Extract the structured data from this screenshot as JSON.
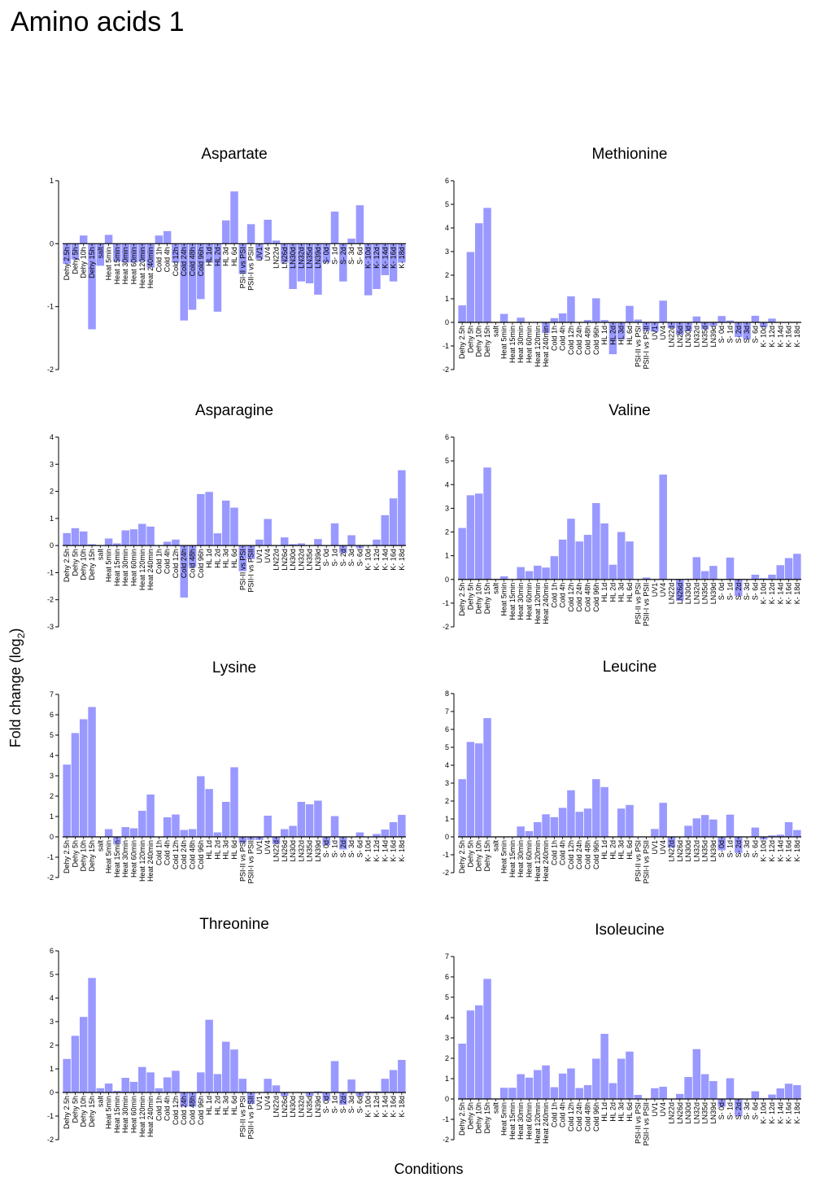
{
  "page": {
    "title": "Amino acids 1",
    "ylabel": "Fold change (log",
    "ylabel_sub": "2",
    "ylabel_end": ")",
    "xlabel": "Conditions"
  },
  "style": {
    "bar_color": "#9999ff"
  },
  "categories": [
    "Dehy 2.5h",
    "Dehy 5h",
    "Dehy 10h",
    "Dehy 15h",
    "salt",
    "Heat 5min",
    "Heat 15min",
    "Heat 30min",
    "Heat 60min",
    "Heat 120min",
    "Heat 240min",
    "Cold 1h",
    "Cold 4h",
    "Cold 12h",
    "Cold 24h",
    "Cold 48h",
    "Cold 96h",
    "HL 1d",
    "HL 2d",
    "HL 3d",
    "HL 6d",
    "PSI-II vs PSI",
    "PSII-I vs PSII",
    "UV1",
    "UV4",
    "LN22d",
    "LN26d",
    "LN30d",
    "LN32d",
    "LN35d",
    "LN39d",
    "S- 0d",
    "S- 1d",
    "S- 2d",
    "S- 3d",
    "S- 6d",
    "K- 10d",
    "K- 12d",
    "K- 14d",
    "K- 16d",
    "K- 18d"
  ],
  "chart_data": [
    {
      "type": "bar",
      "title": "Aspartate",
      "ylim": [
        -2,
        1
      ],
      "yticks": [
        "-2",
        "-1",
        "0",
        "1"
      ],
      "values": [
        -0.32,
        -0.25,
        0.13,
        -1.36,
        -0.35,
        0.14,
        -0.28,
        -0.3,
        -0.3,
        -0.28,
        -0.38,
        0.13,
        0.2,
        -0.3,
        -1.22,
        -1.05,
        -0.88,
        -0.3,
        -1.08,
        0.37,
        0.83,
        -0.48,
        0.31,
        -0.25,
        0.38,
        0.05,
        -0.3,
        -0.72,
        -0.6,
        -0.63,
        -0.81,
        -0.3,
        0.51,
        -0.6,
        0.08,
        0.61,
        -0.82,
        -0.72,
        -0.5,
        -0.6,
        -0.3
      ]
    },
    {
      "type": "bar",
      "title": "Methionine",
      "ylim": [
        -2,
        6
      ],
      "yticks": [
        "-2",
        "-1",
        "0",
        "1",
        "2",
        "3",
        "4",
        "5",
        "6"
      ],
      "values": [
        0.72,
        2.98,
        4.2,
        4.85,
        0,
        0.36,
        0,
        0.2,
        0,
        0,
        -0.45,
        0.18,
        0.38,
        1.1,
        0,
        0.1,
        1.02,
        0.1,
        -1.35,
        -0.72,
        0.7,
        0.12,
        -0.35,
        -0.4,
        0.92,
        -0.25,
        -0.52,
        -0.38,
        0.25,
        -0.3,
        -0.15,
        0.27,
        0.08,
        -0.62,
        -0.72,
        0.28,
        -0.2,
        0.16,
        0,
        0,
        0
      ]
    },
    {
      "type": "bar",
      "title": "Asparagine",
      "ylim": [
        -3,
        4
      ],
      "yticks": [
        "-3",
        "-2",
        "-1",
        "0",
        "1",
        "2",
        "3",
        "4"
      ],
      "values": [
        0.46,
        0.64,
        0.52,
        0.05,
        0,
        0.26,
        0.08,
        0.56,
        0.6,
        0.8,
        0.7,
        0,
        0.14,
        0.22,
        -1.92,
        -0.8,
        1.9,
        1.98,
        0.45,
        1.66,
        1.4,
        -0.95,
        -0.5,
        0.22,
        0.98,
        0,
        0.3,
        0.05,
        0.08,
        0,
        0.24,
        0,
        0.82,
        -0.28,
        0.38,
        -0.1,
        0,
        0.22,
        1.12,
        1.74,
        2.78
      ]
    },
    {
      "type": "bar",
      "title": "Valine",
      "ylim": [
        -2,
        6
      ],
      "yticks": [
        "-2",
        "-1",
        "0",
        "1",
        "2",
        "3",
        "4",
        "5",
        "6"
      ],
      "values": [
        2.17,
        3.55,
        3.62,
        4.72,
        0,
        0.13,
        0,
        0.52,
        0.35,
        0.58,
        0.5,
        0.98,
        1.68,
        2.56,
        1.6,
        1.88,
        3.22,
        2.36,
        0.62,
        2.0,
        1.6,
        0,
        0.08,
        0,
        4.42,
        0,
        -0.9,
        0.03,
        0.94,
        0.35,
        0.57,
        0.02,
        0.92,
        -0.7,
        0,
        0.2,
        0.05,
        0.2,
        0.6,
        0.9,
        1.08
      ]
    },
    {
      "type": "bar",
      "title": "Lysine",
      "ylim": [
        -2,
        7
      ],
      "yticks": [
        "-2",
        "-1",
        "0",
        "1",
        "2",
        "3",
        "4",
        "5",
        "6",
        "7"
      ],
      "values": [
        3.55,
        5.1,
        5.78,
        6.38,
        0,
        0.38,
        -0.35,
        0.48,
        0.42,
        1.28,
        2.08,
        0.02,
        0.96,
        1.1,
        0.34,
        0.38,
        2.98,
        2.35,
        0.22,
        1.72,
        3.42,
        -0.3,
        -0.15,
        -0.15,
        1.04,
        -0.35,
        0.38,
        0.54,
        1.72,
        1.6,
        1.78,
        -0.42,
        1.02,
        -0.62,
        0.02,
        0.22,
        0,
        0.14,
        0.36,
        0.72,
        1.08
      ]
    },
    {
      "type": "bar",
      "title": "Leucine",
      "ylim": [
        -2,
        8
      ],
      "yticks": [
        "-2",
        "-1",
        "0",
        "1",
        "2",
        "3",
        "4",
        "5",
        "6",
        "7",
        "8"
      ],
      "values": [
        3.22,
        5.3,
        5.22,
        6.63,
        0,
        0,
        0,
        0.58,
        0.32,
        0.82,
        1.26,
        1.1,
        1.62,
        2.6,
        1.4,
        1.58,
        3.22,
        2.78,
        0,
        1.58,
        1.78,
        0,
        0,
        0.44,
        1.9,
        -0.6,
        0,
        0.62,
        1.03,
        1.22,
        0.97,
        -0.75,
        1.24,
        -0.9,
        0,
        0.52,
        -0.15,
        0.08,
        0.12,
        0.82,
        0.38
      ]
    },
    {
      "type": "bar",
      "title": "Threonine",
      "ylim": [
        -2,
        6
      ],
      "yticks": [
        "-2",
        "-1",
        "0",
        "1",
        "2",
        "3",
        "4",
        "5",
        "6"
      ],
      "values": [
        1.42,
        2.4,
        3.2,
        4.85,
        0.18,
        0.38,
        0.07,
        0.62,
        0.45,
        1.08,
        0.85,
        0.18,
        0.64,
        0.92,
        -0.6,
        -0.6,
        0.85,
        3.08,
        0.78,
        2.15,
        1.82,
        0.58,
        -0.48,
        0,
        0.58,
        0.3,
        -0.15,
        0,
        0.02,
        -0.15,
        0.05,
        -0.35,
        1.33,
        -0.52,
        0.55,
        -0.15,
        0.05,
        0.05,
        0.58,
        0.95,
        1.38
      ]
    },
    {
      "type": "bar",
      "title": "Isoleucine",
      "ylim": [
        -2,
        7
      ],
      "yticks": [
        "-2",
        "-1",
        "0",
        "1",
        "2",
        "3",
        "4",
        "5",
        "6",
        "7"
      ],
      "values": [
        2.72,
        4.35,
        4.6,
        5.9,
        0,
        0.55,
        0.55,
        1.22,
        1.05,
        1.42,
        1.65,
        0.58,
        1.25,
        1.5,
        0.54,
        0.68,
        1.98,
        3.2,
        0.78,
        1.98,
        2.33,
        0.2,
        0,
        0.53,
        0.6,
        0,
        0.25,
        1.08,
        2.45,
        1.22,
        0.88,
        -0.38,
        1.02,
        -0.85,
        0,
        0.38,
        0.05,
        0.22,
        0.52,
        0.75,
        0.68
      ]
    }
  ]
}
